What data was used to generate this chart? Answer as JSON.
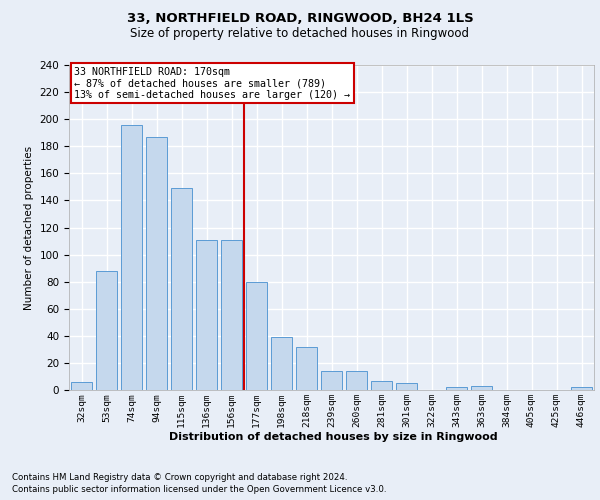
{
  "title1": "33, NORTHFIELD ROAD, RINGWOOD, BH24 1LS",
  "title2": "Size of property relative to detached houses in Ringwood",
  "xlabel": "Distribution of detached houses by size in Ringwood",
  "ylabel": "Number of detached properties",
  "categories": [
    "32sqm",
    "53sqm",
    "74sqm",
    "94sqm",
    "115sqm",
    "136sqm",
    "156sqm",
    "177sqm",
    "198sqm",
    "218sqm",
    "239sqm",
    "260sqm",
    "281sqm",
    "301sqm",
    "322sqm",
    "343sqm",
    "363sqm",
    "384sqm",
    "405sqm",
    "425sqm",
    "446sqm"
  ],
  "values": [
    6,
    88,
    196,
    187,
    149,
    111,
    111,
    80,
    39,
    32,
    14,
    14,
    7,
    5,
    0,
    2,
    3,
    0,
    0,
    0,
    2
  ],
  "bar_color": "#c5d8ed",
  "bar_edge_color": "#5b9bd5",
  "vline_index": 7,
  "annotation_line1": "33 NORTHFIELD ROAD: 170sqm",
  "annotation_line2": "← 87% of detached houses are smaller (789)",
  "annotation_line3": "13% of semi-detached houses are larger (120) →",
  "annotation_box_color": "#ffffff",
  "annotation_box_edge_color": "#cc0000",
  "vline_color": "#cc0000",
  "ylim": [
    0,
    240
  ],
  "yticks": [
    0,
    20,
    40,
    60,
    80,
    100,
    120,
    140,
    160,
    180,
    200,
    220,
    240
  ],
  "footnote1": "Contains HM Land Registry data © Crown copyright and database right 2024.",
  "footnote2": "Contains public sector information licensed under the Open Government Licence v3.0.",
  "background_color": "#e8eef7",
  "grid_color": "#ffffff"
}
